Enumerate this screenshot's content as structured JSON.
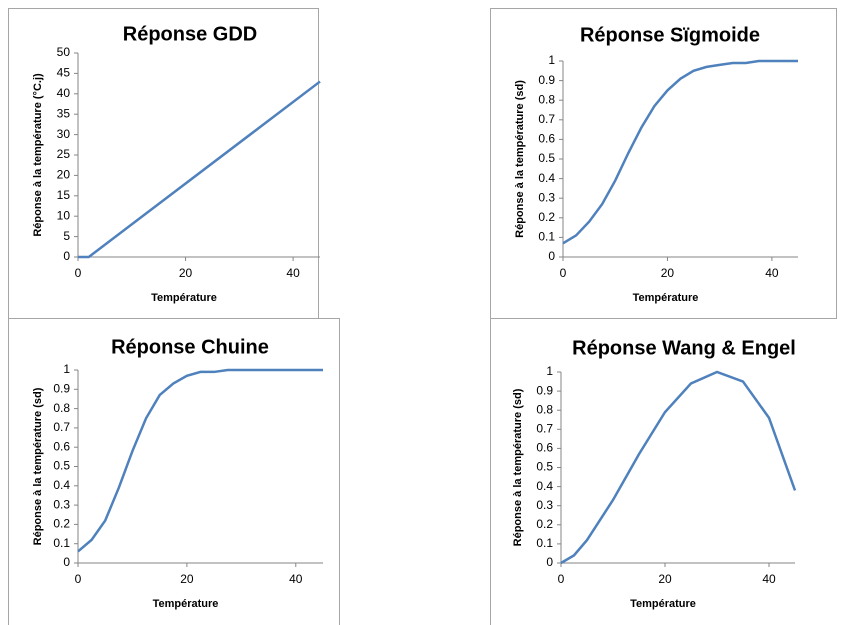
{
  "chart_data": [
    {
      "type": "line",
      "title": "Réponse GDD",
      "xlabel": "Température",
      "ylabel": "Réponse à la température (°C.j)",
      "x": [
        0,
        2,
        45
      ],
      "values": [
        0,
        0,
        43
      ],
      "color": "#4f81bd",
      "xlim": [
        0,
        45
      ],
      "ylim": [
        0,
        50
      ],
      "xticks": [
        0,
        20,
        40
      ],
      "yticks": [
        0,
        5,
        10,
        15,
        20,
        25,
        30,
        35,
        40,
        45,
        50
      ]
    },
    {
      "type": "line",
      "title": "Réponse Sïgmoide",
      "xlabel": "Température",
      "ylabel": "Réponse à la température (sd)",
      "x": [
        0,
        2.5,
        5,
        7.5,
        10,
        12.5,
        15,
        17.5,
        20,
        22.5,
        25,
        27.5,
        30,
        32.5,
        35,
        37.5,
        40,
        42.5,
        45
      ],
      "values": [
        0.07,
        0.11,
        0.18,
        0.27,
        0.39,
        0.53,
        0.66,
        0.77,
        0.85,
        0.91,
        0.95,
        0.97,
        0.98,
        0.99,
        0.99,
        1,
        1,
        1,
        1
      ],
      "color": "#4f81bd",
      "xlim": [
        0,
        45
      ],
      "ylim": [
        0,
        1
      ],
      "xticks": [
        0,
        20,
        40
      ],
      "yticks": [
        0,
        0.1,
        0.2,
        0.3,
        0.4,
        0.5,
        0.6,
        0.7,
        0.8,
        0.9,
        1
      ]
    },
    {
      "type": "line",
      "title": "Réponse Chuine",
      "xlabel": "Température",
      "ylabel": "Réponse à la température (sd)",
      "x": [
        0,
        2.5,
        5,
        7.5,
        10,
        12.5,
        15,
        17.5,
        20,
        22.5,
        25,
        27.5,
        30,
        32.5,
        35,
        37.5,
        40,
        42.5,
        45
      ],
      "values": [
        0.06,
        0.12,
        0.22,
        0.39,
        0.58,
        0.75,
        0.87,
        0.93,
        0.97,
        0.99,
        0.99,
        1,
        1,
        1,
        1,
        1,
        1,
        1,
        1
      ],
      "color": "#4f81bd",
      "xlim": [
        0,
        45
      ],
      "ylim": [
        0,
        1
      ],
      "xticks": [
        0,
        20,
        40
      ],
      "yticks": [
        0,
        0.1,
        0.2,
        0.3,
        0.4,
        0.5,
        0.6,
        0.7,
        0.8,
        0.9,
        1
      ]
    },
    {
      "type": "line",
      "title": "Réponse Wang & Engel",
      "xlabel": "Température",
      "ylabel": "Réponse à la température (sd)",
      "x": [
        0,
        2.5,
        5,
        10,
        15,
        20,
        25,
        30,
        35,
        40,
        45
      ],
      "values": [
        0,
        0.04,
        0.12,
        0.33,
        0.57,
        0.79,
        0.94,
        1,
        0.95,
        0.76,
        0.38
      ],
      "color": "#4f81bd",
      "xlim": [
        0,
        45
      ],
      "ylim": [
        0,
        1
      ],
      "xticks": [
        0,
        20,
        40
      ],
      "yticks": [
        0,
        0.1,
        0.2,
        0.3,
        0.4,
        0.5,
        0.6,
        0.7,
        0.8,
        0.9,
        1
      ]
    }
  ]
}
